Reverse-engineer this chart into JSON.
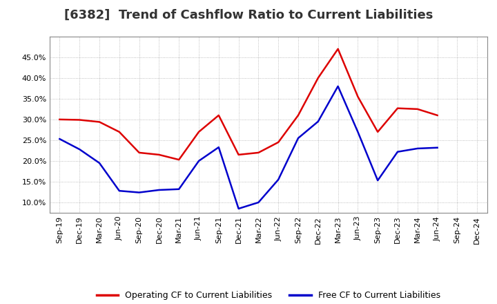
{
  "title": "[6382]  Trend of Cashflow Ratio to Current Liabilities",
  "x_labels": [
    "Sep-19",
    "Dec-19",
    "Mar-20",
    "Jun-20",
    "Sep-20",
    "Dec-20",
    "Mar-21",
    "Jun-21",
    "Sep-21",
    "Dec-21",
    "Mar-22",
    "Jun-22",
    "Sep-22",
    "Dec-22",
    "Mar-23",
    "Jun-23",
    "Sep-23",
    "Dec-23",
    "Mar-24",
    "Jun-24",
    "Sep-24",
    "Dec-24"
  ],
  "operating_cf": [
    0.3,
    0.299,
    0.294,
    0.27,
    0.22,
    0.215,
    0.203,
    0.27,
    0.31,
    0.215,
    0.22,
    0.245,
    0.31,
    0.4,
    0.47,
    0.355,
    0.27,
    0.327,
    0.325,
    0.31,
    null,
    null
  ],
  "free_cf": [
    0.253,
    0.228,
    0.195,
    0.128,
    0.124,
    0.13,
    0.132,
    0.2,
    0.233,
    0.085,
    0.1,
    0.155,
    0.255,
    0.295,
    0.38,
    0.27,
    0.153,
    0.222,
    0.23,
    0.232,
    null,
    null
  ],
  "operating_color": "#dd0000",
  "free_color": "#0000cc",
  "ylim_min": 0.075,
  "ylim_max": 0.5,
  "yticks": [
    0.1,
    0.15,
    0.2,
    0.25,
    0.3,
    0.35,
    0.4,
    0.45
  ],
  "background_color": "#ffffff",
  "plot_bg_color": "#ffffff",
  "grid_color": "#aaaaaa",
  "legend_op": "Operating CF to Current Liabilities",
  "legend_free": "Free CF to Current Liabilities",
  "title_fontsize": 13,
  "tick_fontsize": 8
}
